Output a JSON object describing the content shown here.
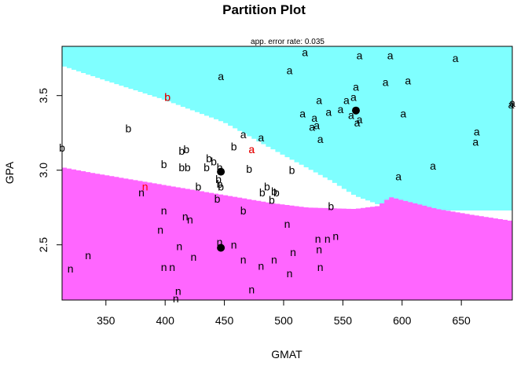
{
  "chart_data": {
    "type": "scatter",
    "title": "Partition Plot",
    "subtitle": "app. error rate: 0.035",
    "xlabel": "GMAT",
    "ylabel": "GPA",
    "xlim": [
      313,
      693
    ],
    "ylim": [
      2.13,
      3.83
    ],
    "xticks": [
      350,
      400,
      450,
      500,
      550,
      600,
      650
    ],
    "yticks": [
      2.5,
      3.0,
      3.5
    ],
    "grid": false,
    "colors": {
      "a_region": "#7fffff",
      "b_region": "#ffffff",
      "n_region": "#ff66ff",
      "label": "#000000",
      "misclassified": "#ff0000",
      "centroid": "#000000"
    },
    "boundaries": {
      "upper": [
        [
          313,
          3.7
        ],
        [
          350,
          3.6
        ],
        [
          400,
          3.47
        ],
        [
          450,
          3.32
        ],
        [
          500,
          3.1
        ],
        [
          540,
          2.93
        ],
        [
          560,
          2.83
        ],
        [
          580,
          2.77
        ],
        [
          600,
          2.73
        ],
        [
          650,
          2.73
        ],
        [
          693,
          2.73
        ]
      ],
      "lower": [
        [
          313,
          3.02
        ],
        [
          340,
          2.98
        ],
        [
          370,
          2.94
        ],
        [
          400,
          2.9
        ],
        [
          430,
          2.86
        ],
        [
          460,
          2.82
        ],
        [
          490,
          2.78
        ],
        [
          520,
          2.75
        ],
        [
          560,
          2.74
        ],
        [
          580,
          2.76
        ],
        [
          590,
          2.82
        ],
        [
          600,
          2.8
        ],
        [
          630,
          2.74
        ],
        [
          660,
          2.7
        ],
        [
          693,
          2.66
        ]
      ]
    },
    "centroids": [
      {
        "class": "a",
        "x": 561,
        "y": 3.4
      },
      {
        "class": "b",
        "x": 447,
        "y": 2.99
      },
      {
        "class": "n",
        "x": 447,
        "y": 2.48
      }
    ],
    "points": [
      {
        "label": "a",
        "x": 564,
        "y": 3.77
      },
      {
        "label": "a",
        "x": 590,
        "y": 3.77
      },
      {
        "label": "a",
        "x": 645,
        "y": 3.75
      },
      {
        "label": "a",
        "x": 518,
        "y": 3.79
      },
      {
        "label": "a",
        "x": 505,
        "y": 3.67
      },
      {
        "label": "a",
        "x": 447,
        "y": 3.63
      },
      {
        "label": "a",
        "x": 561,
        "y": 3.56
      },
      {
        "label": "a",
        "x": 586,
        "y": 3.59
      },
      {
        "label": "a",
        "x": 605,
        "y": 3.6
      },
      {
        "label": "a",
        "x": 530,
        "y": 3.47
      },
      {
        "label": "a",
        "x": 553,
        "y": 3.47
      },
      {
        "label": "a",
        "x": 559,
        "y": 3.49
      },
      {
        "label": "a",
        "x": 548,
        "y": 3.41
      },
      {
        "label": "a",
        "x": 538,
        "y": 3.39
      },
      {
        "label": "a",
        "x": 516,
        "y": 3.38
      },
      {
        "label": "a",
        "x": 557,
        "y": 3.37
      },
      {
        "label": "a",
        "x": 601,
        "y": 3.38
      },
      {
        "label": "a",
        "x": 692,
        "y": 3.44
      },
      {
        "label": "a",
        "x": 693,
        "y": 3.45
      },
      {
        "label": "a",
        "x": 526,
        "y": 3.35
      },
      {
        "label": "a",
        "x": 562,
        "y": 3.32
      },
      {
        "label": "a",
        "x": 564,
        "y": 3.34
      },
      {
        "label": "a",
        "x": 528,
        "y": 3.3
      },
      {
        "label": "a",
        "x": 524,
        "y": 3.29
      },
      {
        "label": "a",
        "x": 663,
        "y": 3.26
      },
      {
        "label": "a",
        "x": 662,
        "y": 3.19
      },
      {
        "label": "a",
        "x": 466,
        "y": 3.24
      },
      {
        "label": "a",
        "x": 481,
        "y": 3.22
      },
      {
        "label": "a",
        "x": 531,
        "y": 3.21
      },
      {
        "label": "a",
        "x": 473,
        "y": 3.14
      },
      {
        "label": "a",
        "x": 597,
        "y": 2.96
      },
      {
        "label": "a",
        "x": 626,
        "y": 3.03
      },
      {
        "label": "b",
        "x": 402,
        "y": 3.49
      },
      {
        "label": "b",
        "x": 369,
        "y": 3.28
      },
      {
        "label": "b",
        "x": 313,
        "y": 3.15
      },
      {
        "label": "b",
        "x": 418,
        "y": 3.14
      },
      {
        "label": "b",
        "x": 414,
        "y": 3.13
      },
      {
        "label": "b",
        "x": 458,
        "y": 3.16
      },
      {
        "label": "b",
        "x": 437,
        "y": 3.08
      },
      {
        "label": "b",
        "x": 441,
        "y": 3.06
      },
      {
        "label": "b",
        "x": 399,
        "y": 3.04
      },
      {
        "label": "b",
        "x": 414,
        "y": 3.02
      },
      {
        "label": "b",
        "x": 419,
        "y": 3.02
      },
      {
        "label": "b",
        "x": 435,
        "y": 3.02
      },
      {
        "label": "b",
        "x": 471,
        "y": 3.01
      },
      {
        "label": "b",
        "x": 446,
        "y": 3.02
      },
      {
        "label": "b",
        "x": 507,
        "y": 3.0
      },
      {
        "label": "b",
        "x": 445,
        "y": 2.94
      },
      {
        "label": "b",
        "x": 446,
        "y": 2.91
      },
      {
        "label": "b",
        "x": 428,
        "y": 2.89
      },
      {
        "label": "b",
        "x": 447,
        "y": 2.89
      },
      {
        "label": "b",
        "x": 486,
        "y": 2.89
      },
      {
        "label": "b",
        "x": 492,
        "y": 2.86
      },
      {
        "label": "b",
        "x": 482,
        "y": 2.85
      },
      {
        "label": "b",
        "x": 494,
        "y": 2.85
      },
      {
        "label": "b",
        "x": 444,
        "y": 2.81
      },
      {
        "label": "b",
        "x": 490,
        "y": 2.8
      },
      {
        "label": "b",
        "x": 466,
        "y": 2.73
      },
      {
        "label": "b",
        "x": 540,
        "y": 2.76
      },
      {
        "label": "n",
        "x": 380,
        "y": 2.85
      },
      {
        "label": "n",
        "x": 399,
        "y": 2.73
      },
      {
        "label": "n",
        "x": 417,
        "y": 2.69
      },
      {
        "label": "n",
        "x": 421,
        "y": 2.67
      },
      {
        "label": "n",
        "x": 503,
        "y": 2.64
      },
      {
        "label": "n",
        "x": 396,
        "y": 2.6
      },
      {
        "label": "n",
        "x": 544,
        "y": 2.56
      },
      {
        "label": "n",
        "x": 529,
        "y": 2.54
      },
      {
        "label": "n",
        "x": 537,
        "y": 2.54
      },
      {
        "label": "n",
        "x": 446,
        "y": 2.52
      },
      {
        "label": "n",
        "x": 458,
        "y": 2.5
      },
      {
        "label": "n",
        "x": 412,
        "y": 2.49
      },
      {
        "label": "n",
        "x": 530,
        "y": 2.47
      },
      {
        "label": "n",
        "x": 508,
        "y": 2.45
      },
      {
        "label": "n",
        "x": 335,
        "y": 2.43
      },
      {
        "label": "n",
        "x": 424,
        "y": 2.42
      },
      {
        "label": "n",
        "x": 466,
        "y": 2.4
      },
      {
        "label": "n",
        "x": 492,
        "y": 2.4
      },
      {
        "label": "n",
        "x": 399,
        "y": 2.35
      },
      {
        "label": "n",
        "x": 406,
        "y": 2.35
      },
      {
        "label": "n",
        "x": 481,
        "y": 2.36
      },
      {
        "label": "n",
        "x": 320,
        "y": 2.34
      },
      {
        "label": "n",
        "x": 531,
        "y": 2.35
      },
      {
        "label": "n",
        "x": 505,
        "y": 2.31
      },
      {
        "label": "n",
        "x": 473,
        "y": 2.2
      },
      {
        "label": "n",
        "x": 411,
        "y": 2.19
      },
      {
        "label": "n",
        "x": 409,
        "y": 2.14
      },
      {
        "label": "b",
        "x": 402,
        "y": 3.49,
        "misclassified": true
      },
      {
        "label": "a",
        "x": 473,
        "y": 3.14,
        "misclassified": true
      },
      {
        "label": "n",
        "x": 383,
        "y": 2.89,
        "misclassified": true
      }
    ]
  }
}
